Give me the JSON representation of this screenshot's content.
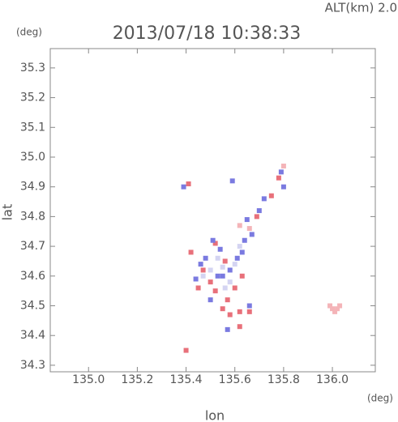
{
  "chart_data": {
    "type": "scatter",
    "annotation": "ALT(km) 2.0",
    "title": "2013/07/18 10:38:33",
    "x_unit": "(deg)",
    "y_unit": "(deg)",
    "xlabel": "lon",
    "ylabel": "lat",
    "xlim": [
      134.843,
      136.176
    ],
    "ylim": [
      34.278,
      35.365
    ],
    "xticks": [
      {
        "value": 135,
        "label": "135.0"
      },
      135.2,
      135.4,
      135.6,
      135.8,
      {
        "value": 136,
        "label": "136.0"
      }
    ],
    "yticks": [
      34.3,
      34.4,
      34.5,
      34.6,
      34.7,
      34.8,
      34.9,
      {
        "value": 35,
        "label": "35.0"
      },
      35.1,
      35.2,
      35.3
    ],
    "series": [
      {
        "color": "#e8707a",
        "x": [
          135.42,
          135.47,
          135.5,
          135.52,
          135.55,
          135.58,
          135.62,
          135.66,
          135.6,
          135.63,
          135.56,
          135.52,
          135.45,
          135.4,
          135.62,
          135.75,
          135.78,
          135.69,
          135.57,
          135.41
        ],
        "y": [
          34.68,
          34.62,
          34.58,
          34.55,
          34.49,
          34.47,
          34.48,
          34.48,
          34.56,
          34.6,
          34.65,
          34.71,
          34.56,
          34.35,
          34.43,
          34.87,
          34.93,
          34.8,
          34.52,
          34.91
        ]
      },
      {
        "color": "#7a7ae0",
        "x": [
          135.48,
          135.51,
          135.53,
          135.46,
          135.55,
          135.58,
          135.61,
          135.64,
          135.67,
          135.7,
          135.72,
          135.65,
          135.63,
          135.5,
          135.57,
          135.66,
          135.8,
          135.79,
          135.59,
          135.39,
          135.44,
          135.54
        ],
        "y": [
          34.66,
          34.72,
          34.6,
          34.64,
          34.6,
          34.62,
          34.66,
          34.72,
          34.74,
          34.82,
          34.86,
          34.79,
          34.68,
          34.52,
          34.42,
          34.5,
          34.9,
          34.95,
          34.92,
          34.9,
          34.59,
          34.69
        ]
      },
      {
        "color": "#f4b4b8",
        "x": [
          136.0,
          136.02,
          136.01,
          136.03,
          135.99,
          135.8,
          135.66,
          135.62
        ],
        "y": [
          34.49,
          34.49,
          34.48,
          34.5,
          34.5,
          34.97,
          34.76,
          34.77
        ]
      },
      {
        "color": "#d4d4f2",
        "x": [
          135.5,
          135.55,
          135.58,
          135.47,
          135.53,
          135.6,
          135.56,
          135.62
        ],
        "y": [
          34.62,
          34.63,
          34.58,
          34.6,
          34.66,
          34.64,
          34.56,
          34.7
        ]
      }
    ]
  }
}
